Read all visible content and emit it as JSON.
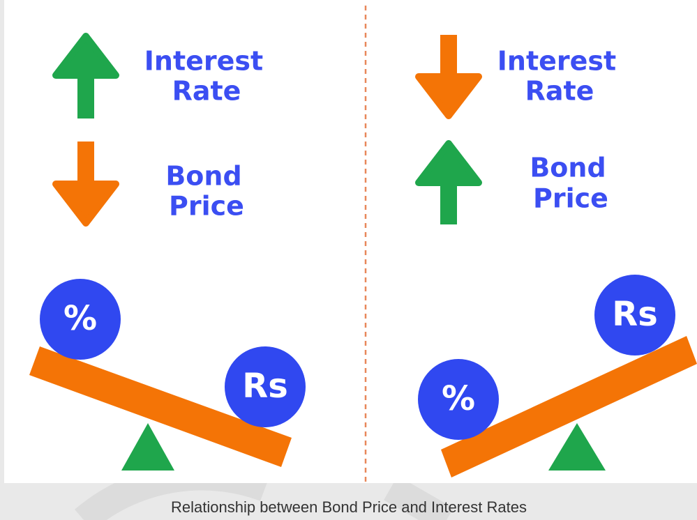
{
  "panels": [
    {
      "top": {
        "lines": [
          "Interest",
          "Rate"
        ]
      },
      "bottom": {
        "lines": [
          "Bond",
          "Price"
        ]
      },
      "circles": [
        "%",
        "Rs"
      ]
    },
    {
      "top": {
        "lines": [
          "Interest",
          "Rate"
        ]
      },
      "bottom": {
        "lines": [
          "Bond",
          "Price"
        ]
      },
      "circles": [
        "%",
        "Rs"
      ]
    }
  ],
  "caption": "Relationship between Bond Price and Interest Rates"
}
